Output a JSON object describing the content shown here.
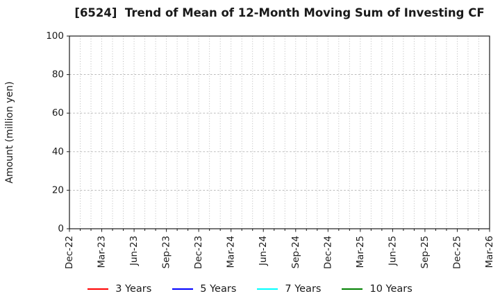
{
  "chart_data": {
    "type": "line",
    "title": "[6524]  Trend of Mean of 12-Month Moving Sum of Investing CF",
    "xlabel": "",
    "ylabel": "Amount (million yen)",
    "ylim": [
      0,
      100
    ],
    "yticks": [
      0,
      20,
      40,
      60,
      80,
      100
    ],
    "x_tick_labels": [
      "Dec-22",
      "Mar-23",
      "Jun-23",
      "Sep-23",
      "Dec-23",
      "Mar-24",
      "Jun-24",
      "Sep-24",
      "Dec-24",
      "Mar-25",
      "Jun-25",
      "Sep-25",
      "Dec-25",
      "Mar-26"
    ],
    "x_tick_step_months": 3,
    "x_total_months": 39,
    "grid": true,
    "legend_position": "bottom",
    "series": [
      {
        "name": "3 Years",
        "color": "#ff0000",
        "x": [],
        "values": []
      },
      {
        "name": "5 Years",
        "color": "#0000ff",
        "x": [],
        "values": []
      },
      {
        "name": "7 Years",
        "color": "#00ffff",
        "x": [],
        "values": []
      },
      {
        "name": "10 Years",
        "color": "#008000",
        "x": [],
        "values": []
      }
    ]
  },
  "colors": {
    "background": "#ffffff",
    "spine": "#1a1a1a",
    "grid": "#b0b0b0",
    "tick_text": "#1a1a1a"
  }
}
